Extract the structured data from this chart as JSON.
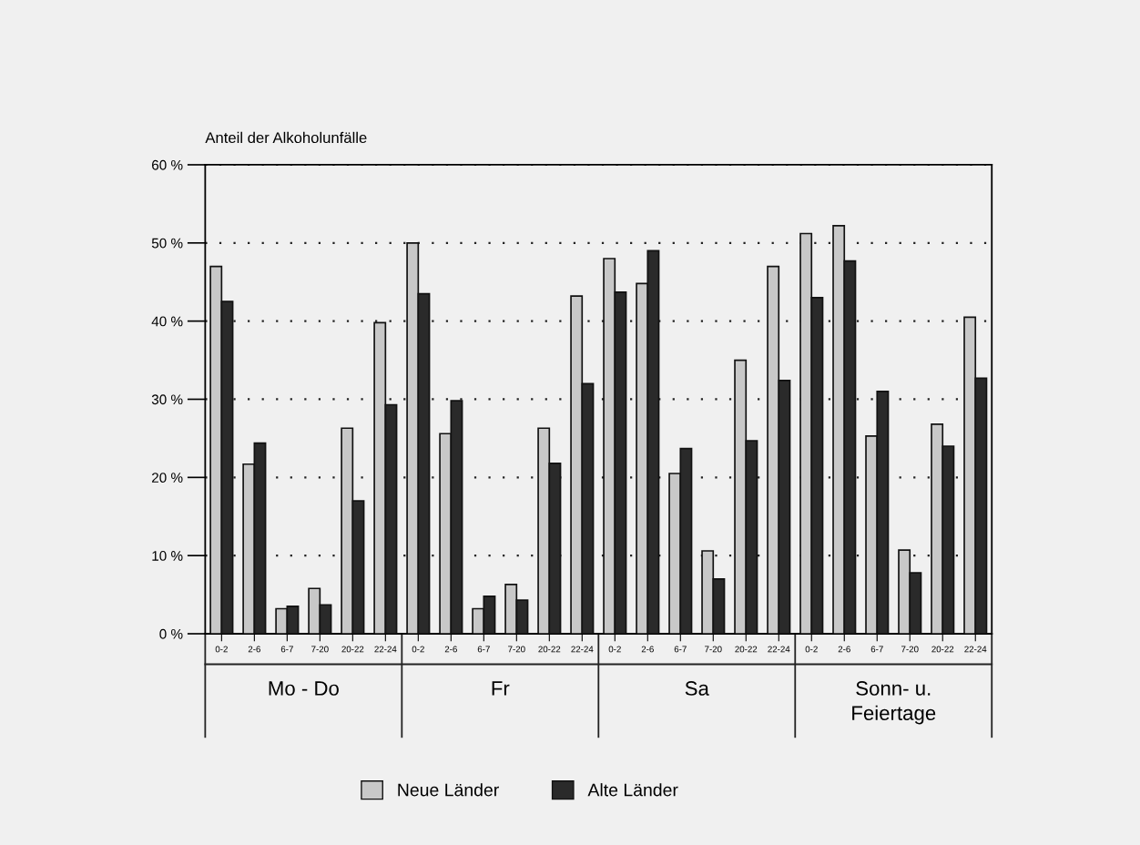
{
  "chart_data": {
    "type": "bar",
    "ylabel": "Anteil der Alkoholunfälle",
    "categories": [
      "0-2",
      "2-6",
      "6-7",
      "7-20",
      "20-22",
      "22-24",
      "0-2",
      "2-6",
      "6-7",
      "7-20",
      "20-22",
      "22-24",
      "0-2",
      "2-6",
      "6-7",
      "7-20",
      "20-22",
      "22-24",
      "0-2",
      "2-6",
      "6-7",
      "7-20",
      "20-22",
      "22-24"
    ],
    "series": [
      {
        "name": "Neue Länder",
        "color": "#c8c8c8",
        "values": [
          47,
          21.7,
          3.2,
          5.8,
          26.3,
          39.8,
          50,
          25.6,
          3.2,
          6.3,
          26.3,
          43.2,
          48,
          44.8,
          20.5,
          10.6,
          35,
          47,
          51.2,
          52.2,
          25.3,
          10.7,
          26.8,
          40.5
        ]
      },
      {
        "name": "Alte Länder",
        "color": "#2a2a2a",
        "values": [
          42.5,
          24.4,
          3.5,
          3.7,
          17,
          29.3,
          43.5,
          29.8,
          4.8,
          4.3,
          21.8,
          32,
          43.7,
          49,
          23.7,
          7,
          24.7,
          32.4,
          43,
          47.7,
          31,
          7.8,
          24,
          32.7
        ]
      }
    ],
    "ylim": [
      0,
      60
    ],
    "yticks": [
      {
        "value": 0,
        "label": "0 %"
      },
      {
        "value": 10,
        "label": "10 %"
      },
      {
        "value": 20,
        "label": "20 %"
      },
      {
        "value": 30,
        "label": "30 %"
      },
      {
        "value": 40,
        "label": "40 %"
      },
      {
        "value": 50,
        "label": "50 %"
      },
      {
        "value": 60,
        "label": "60 %"
      }
    ],
    "grid": "y",
    "legend": "bottom",
    "annotations": [
      "Mo - Do",
      "Fr",
      "Sa",
      "Sonn- u.\nFeiertage"
    ]
  }
}
